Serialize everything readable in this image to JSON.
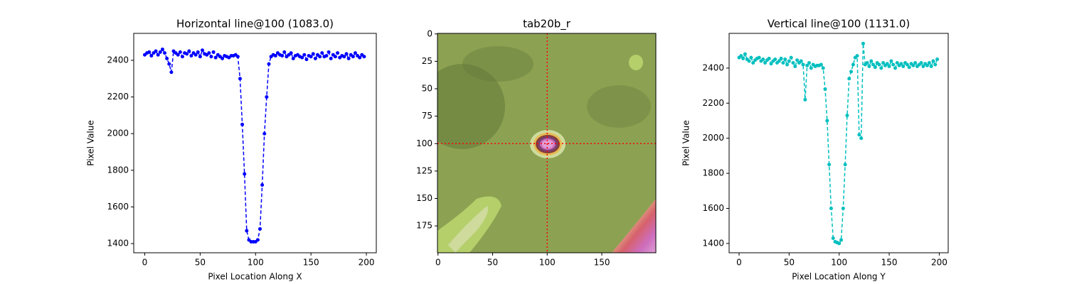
{
  "chart_data": [
    {
      "type": "line",
      "title": "Horizontal line@100 (1083.0)",
      "xlabel": "Pixel Location Along X",
      "ylabel": "Pixel Value",
      "xlim": [
        -9.95,
        208.95
      ],
      "ylim": [
        1350,
        2547
      ],
      "xticks": [
        0,
        50,
        100,
        150,
        200
      ],
      "yticks": [
        1400,
        1600,
        1800,
        2000,
        2200,
        2400
      ],
      "x": [
        0,
        2,
        4,
        6,
        8,
        10,
        12,
        14,
        16,
        18,
        20,
        22,
        24,
        26,
        28,
        30,
        32,
        34,
        36,
        38,
        40,
        42,
        44,
        46,
        48,
        50,
        52,
        54,
        56,
        58,
        60,
        62,
        64,
        66,
        68,
        70,
        72,
        74,
        76,
        78,
        80,
        82,
        84,
        86,
        88,
        90,
        92,
        94,
        96,
        98,
        100,
        102,
        104,
        106,
        108,
        110,
        112,
        114,
        116,
        118,
        120,
        122,
        124,
        126,
        128,
        130,
        132,
        134,
        136,
        138,
        140,
        142,
        144,
        146,
        148,
        150,
        152,
        154,
        156,
        158,
        160,
        162,
        164,
        166,
        168,
        170,
        172,
        174,
        176,
        178,
        180,
        182,
        184,
        186,
        188,
        190,
        192,
        194,
        196,
        198
      ],
      "series": [
        {
          "color": "#0000ff",
          "values": [
            2430,
            2440,
            2445,
            2425,
            2440,
            2450,
            2430,
            2445,
            2460,
            2440,
            2410,
            2380,
            2335,
            2450,
            2440,
            2430,
            2445,
            2420,
            2440,
            2435,
            2450,
            2425,
            2440,
            2430,
            2445,
            2420,
            2455,
            2435,
            2430,
            2440,
            2420,
            2445,
            2415,
            2430,
            2420,
            2410,
            2425,
            2420,
            2415,
            2425,
            2425,
            2430,
            2420,
            2300,
            2050,
            1780,
            1470,
            1420,
            1410,
            1410,
            1410,
            1420,
            1480,
            1720,
            2000,
            2200,
            2380,
            2420,
            2430,
            2425,
            2440,
            2430,
            2425,
            2445,
            2420,
            2430,
            2440,
            2410,
            2425,
            2430,
            2420,
            2415,
            2430,
            2405,
            2425,
            2420,
            2435,
            2410,
            2430,
            2420,
            2440,
            2420,
            2425,
            2445,
            2410,
            2430,
            2420,
            2440,
            2415,
            2425,
            2420,
            2435,
            2410,
            2430,
            2420,
            2440,
            2425,
            2415,
            2430,
            2420
          ]
        }
      ]
    },
    {
      "type": "image",
      "title": "tab20b_r",
      "xlim": [
        -0.5,
        199.5
      ],
      "ylim": [
        199.5,
        -0.5
      ],
      "xticks": [
        0,
        50,
        100,
        150
      ],
      "yticks": [
        0,
        25,
        50,
        75,
        100,
        125,
        150,
        175
      ],
      "crosshair": {
        "x": 100,
        "y": 100,
        "color": "#ff0000"
      }
    },
    {
      "type": "line",
      "title": "Vertical line@100 (1131.0)",
      "xlabel": "Pixel Location Along Y",
      "ylabel": "Pixel Value",
      "xlim": [
        -9.95,
        208.95
      ],
      "ylim": [
        1347,
        2598
      ],
      "xticks": [
        0,
        50,
        100,
        150,
        200
      ],
      "yticks": [
        1400,
        1600,
        1800,
        2000,
        2200,
        2400
      ],
      "x": [
        0,
        2,
        4,
        6,
        8,
        10,
        12,
        14,
        16,
        18,
        20,
        22,
        24,
        26,
        28,
        30,
        32,
        34,
        36,
        38,
        40,
        42,
        44,
        46,
        48,
        50,
        52,
        54,
        56,
        58,
        60,
        62,
        64,
        66,
        68,
        70,
        72,
        74,
        76,
        78,
        80,
        82,
        84,
        86,
        88,
        90,
        92,
        94,
        96,
        98,
        100,
        102,
        104,
        106,
        108,
        110,
        112,
        114,
        116,
        118,
        120,
        122,
        124,
        126,
        128,
        130,
        132,
        134,
        136,
        138,
        140,
        142,
        144,
        146,
        148,
        150,
        152,
        154,
        156,
        158,
        160,
        162,
        164,
        166,
        168,
        170,
        172,
        174,
        176,
        178,
        180,
        182,
        184,
        186,
        188,
        190,
        192,
        194,
        196,
        198
      ],
      "series": [
        {
          "color": "#00bfbf",
          "values": [
            2460,
            2470,
            2455,
            2480,
            2450,
            2440,
            2460,
            2430,
            2445,
            2455,
            2460,
            2440,
            2450,
            2430,
            2445,
            2455,
            2425,
            2440,
            2450,
            2430,
            2440,
            2455,
            2430,
            2450,
            2420,
            2440,
            2460,
            2430,
            2410,
            2445,
            2430,
            2440,
            2420,
            2220,
            2415,
            2430,
            2400,
            2420,
            2410,
            2415,
            2415,
            2420,
            2400,
            2280,
            2100,
            1850,
            1600,
            1430,
            1410,
            1405,
            1400,
            1420,
            1600,
            1850,
            2130,
            2340,
            2380,
            2420,
            2460,
            2470,
            2020,
            2000,
            2540,
            2420,
            2430,
            2410,
            2440,
            2420,
            2405,
            2430,
            2420,
            2400,
            2430,
            2415,
            2425,
            2410,
            2440,
            2420,
            2400,
            2430,
            2415,
            2425,
            2410,
            2430,
            2420,
            2405,
            2425,
            2415,
            2430,
            2410,
            2420,
            2430,
            2410,
            2425,
            2415,
            2430,
            2410,
            2440,
            2420,
            2450
          ]
        }
      ]
    }
  ]
}
